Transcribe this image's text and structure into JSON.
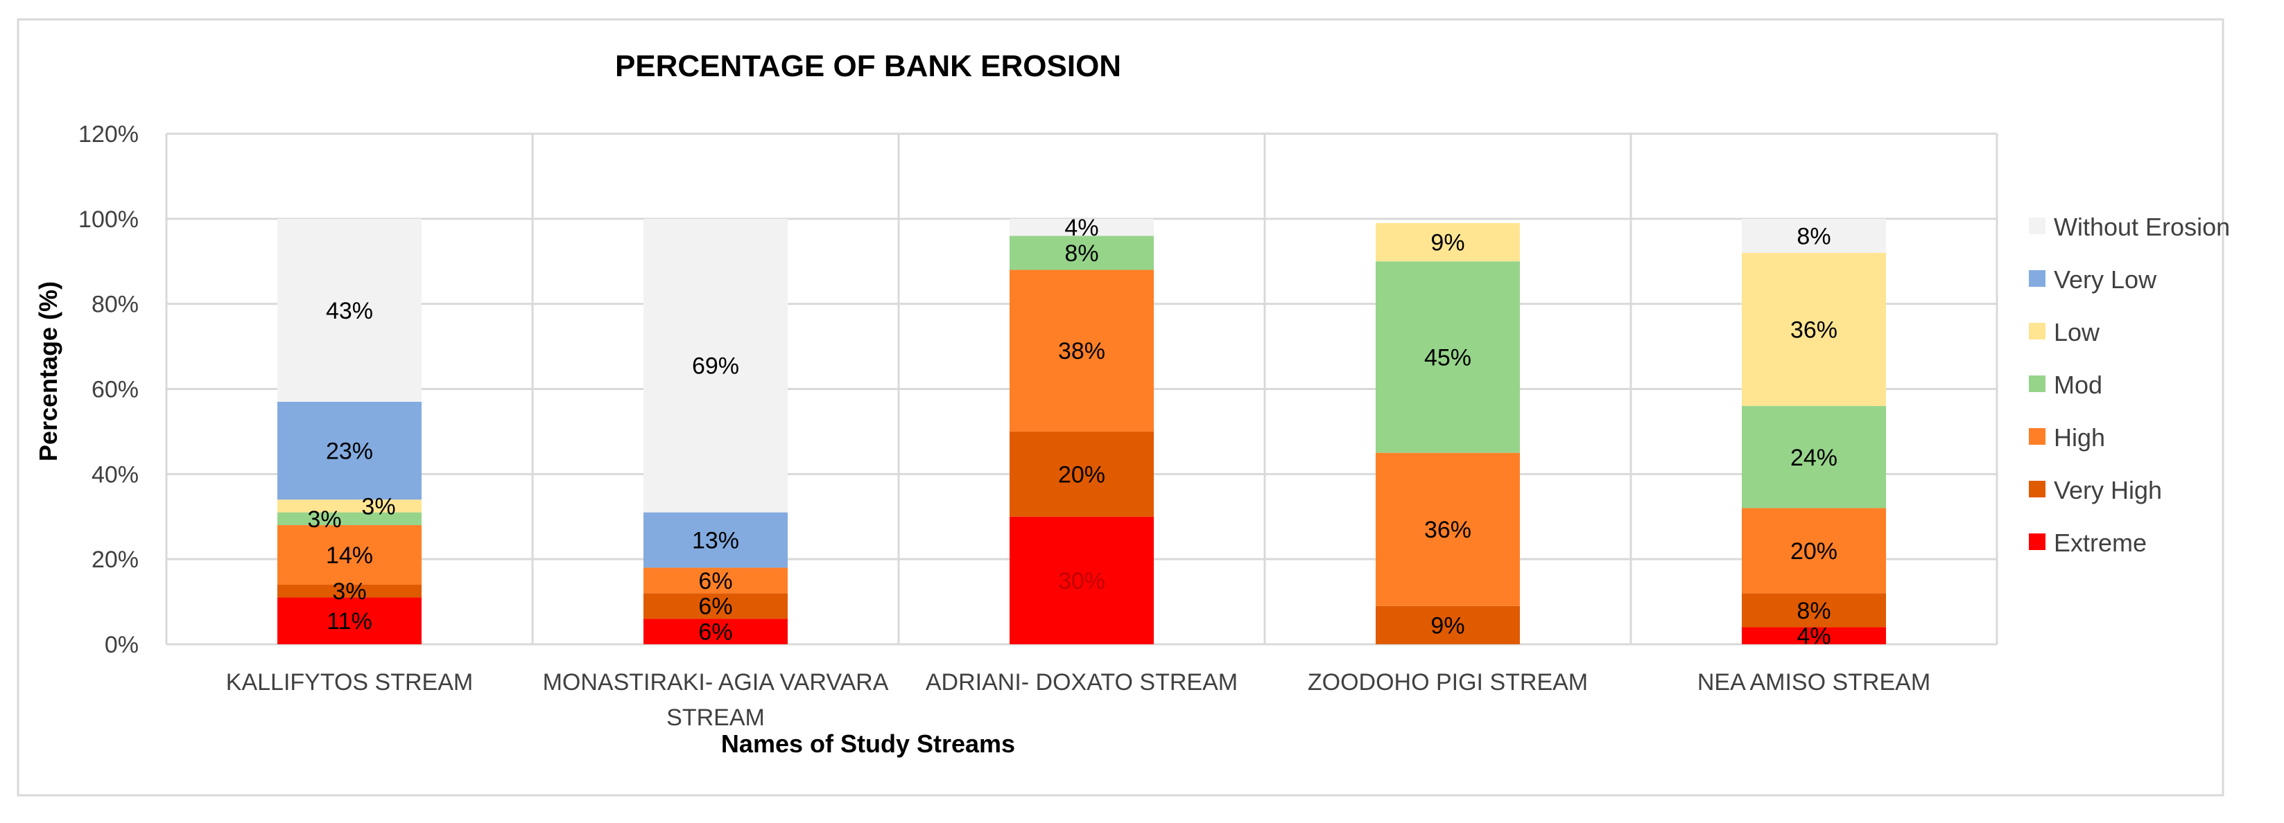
{
  "chart_data": {
    "type": "bar",
    "stacked": true,
    "title": "PERCENTAGE OF BANK EROSION",
    "xlabel": "Names of Study Streams",
    "ylabel": "Percentage (%)",
    "ylim": [
      0,
      120
    ],
    "yticks": [
      0,
      20,
      40,
      60,
      80,
      100,
      120
    ],
    "ytick_labels": [
      "0%",
      "20%",
      "40%",
      "60%",
      "80%",
      "100%",
      "120%"
    ],
    "grid": true,
    "legend_position": "right",
    "categories": [
      [
        "KALLIFYTOS STREAM"
      ],
      [
        "MONASTIRAKI- AGIA VARVARA",
        "STREAM"
      ],
      [
        "ADRIANI- DOXATO STREAM"
      ],
      [
        "ZOODOHO PIGI STREAM"
      ],
      [
        "NEA AMISO STREAM"
      ]
    ],
    "series": [
      {
        "name": "Extreme",
        "color": "#FF0000",
        "values": [
          11,
          6,
          30,
          0,
          4
        ],
        "labels": [
          "11%",
          "6%",
          "30%",
          "",
          "4%"
        ],
        "label_color": "#000000",
        "label_colors": [
          "#000000",
          "#000000",
          "#C00000",
          "#000000",
          "#000000"
        ]
      },
      {
        "name": "Very High",
        "color": "#E05A00",
        "values": [
          3,
          6,
          20,
          9,
          8
        ],
        "labels": [
          "3%",
          "6%",
          "20%",
          "9%",
          "8%"
        ],
        "label_color": "#000000"
      },
      {
        "name": "High",
        "color": "#FF7F27",
        "values": [
          14,
          6,
          38,
          36,
          20
        ],
        "labels": [
          "14%",
          "6%",
          "38%",
          "36%",
          "20%"
        ],
        "label_color": "#000000"
      },
      {
        "name": "Mod",
        "color": "#96D48A",
        "values": [
          3,
          0,
          8,
          45,
          24
        ],
        "labels": [
          "3%",
          "",
          "8%",
          "45%",
          "24%"
        ],
        "label_color": "#000000"
      },
      {
        "name": "Low",
        "color": "#FFE592",
        "values": [
          3,
          0,
          0,
          9,
          36
        ],
        "labels": [
          "3%",
          "",
          "",
          "9%",
          "36%"
        ],
        "label_color": "#000000"
      },
      {
        "name": "Very Low",
        "color": "#83ABDF",
        "values": [
          23,
          13,
          0,
          0,
          0
        ],
        "labels": [
          "23%",
          "13%",
          "",
          "",
          ""
        ],
        "label_color": "#000000"
      },
      {
        "name": "Without Erosion",
        "color": "#F2F2F2",
        "values": [
          43,
          69,
          4,
          0,
          8
        ],
        "labels": [
          "43%",
          "69%",
          "4%",
          "",
          "8%"
        ],
        "label_color": "#000000"
      }
    ]
  }
}
